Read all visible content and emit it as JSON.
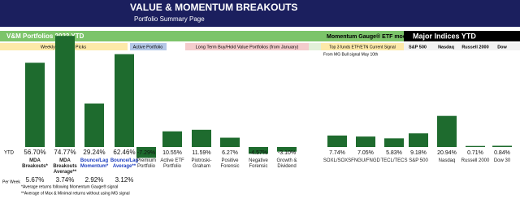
{
  "chart_data": {
    "type": "bar",
    "title": "VALUE & MOMENTUM BREAKOUTS",
    "subtitle": "Portfolio Summary Page",
    "sections": [
      "V&M Portfolios 2023 YTD",
      "Momentum Gauge® ETF model",
      "Major Indices YTD"
    ],
    "groups": [
      "Weekly Breakout Picks",
      "Active Portfolio",
      "Long Term Buy/Hold Value Portfolios (from January)",
      "Top 3 funds ETF/ETN Current Signal",
      "S&P 500",
      "Nasdaq",
      "Russell 2000",
      "Dow"
    ],
    "note": "From MG Bull signal May 10th",
    "row_label": "YTD",
    "categories": [
      "MDA Breakouts*",
      "MDA Breakouts Average**",
      "Bounce/Lag Momentum*",
      "Bounce/Lag Average**",
      "Premium Portfolio",
      "Active ETF Portfolio",
      "Piotroski-Graham",
      "Positive Forensic",
      "Negative Forensic",
      "Growth & Dividend",
      "SOXL/SOXS",
      "FNGU/FNGD",
      "TECL/TECS",
      "S&P 500",
      "Nasdaq",
      "Russell 2000",
      "Dow 30"
    ],
    "values": [
      56.7,
      74.77,
      29.24,
      62.46,
      -7.29,
      10.55,
      11.59,
      6.27,
      -4.57,
      -3.1,
      7.74,
      7.05,
      5.83,
      9.18,
      20.94,
      0.71,
      0.84
    ],
    "value_labels": [
      "56.70%",
      "74.77%",
      "29.24%",
      "62.46%",
      "-7.29%",
      "10.55%",
      "11.59%",
      "6.27%",
      "-4.57%",
      "-3.10%",
      "7.74%",
      "7.05%",
      "5.83%",
      "9.18%",
      "20.94%",
      "0.71%",
      "0.84%"
    ],
    "color": "#1e6b2e",
    "per_week": {
      "label": "Per Week",
      "values": [
        "5.67%",
        "3.74%",
        "2.92%",
        "3.12%"
      ]
    },
    "footnotes": [
      "*Average returns following Momentum Gauge® signal",
      "**Average of Max & Minimal returns without using MG signal"
    ]
  }
}
